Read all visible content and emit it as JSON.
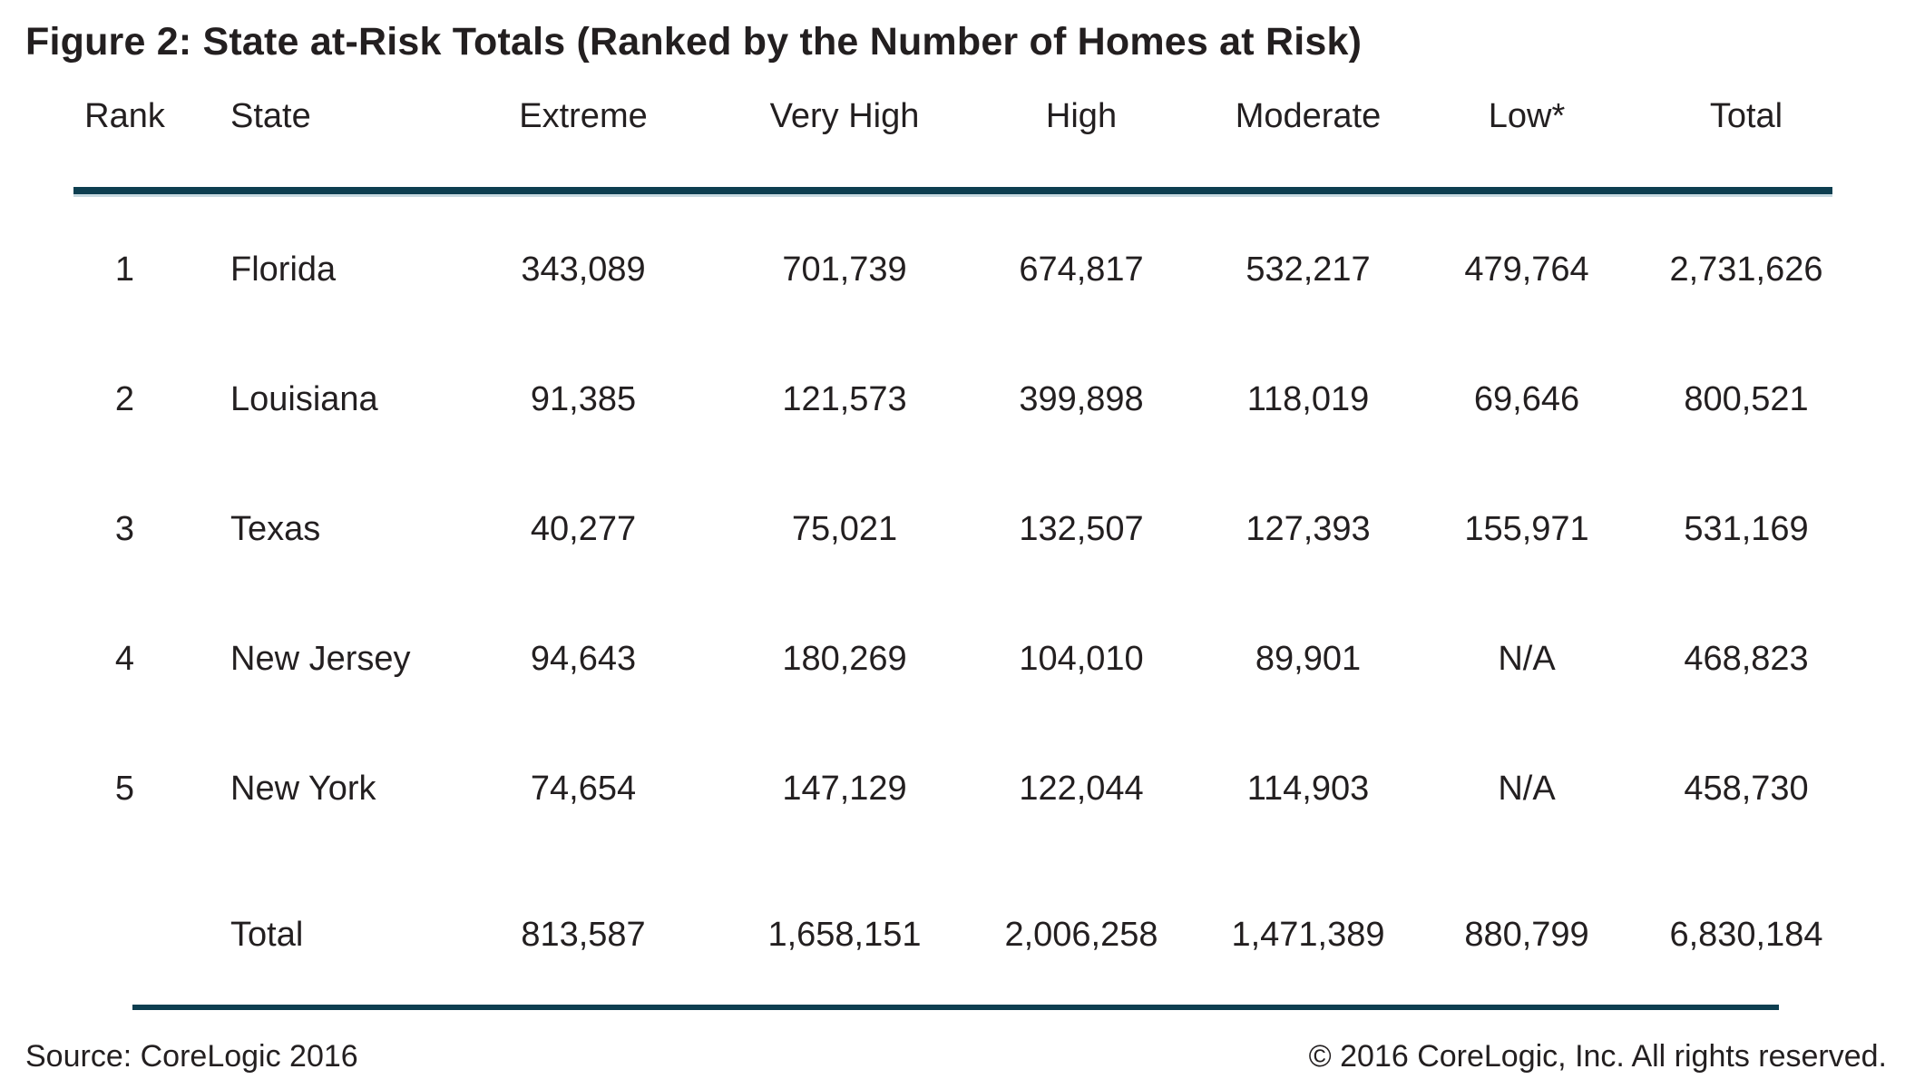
{
  "title": "Figure 2: State at-Risk Totals (Ranked by the Number of Homes at Risk)",
  "table": {
    "headers": [
      "Rank",
      "State",
      "Extreme",
      "Very High",
      "High",
      "Moderate",
      "Low*",
      "Total"
    ],
    "rows": [
      [
        "1",
        "Florida",
        "343,089",
        "701,739",
        "674,817",
        "532,217",
        "479,764",
        "2,731,626"
      ],
      [
        "2",
        "Louisiana",
        "91,385",
        "121,573",
        "399,898",
        "118,019",
        "69,646",
        "800,521"
      ],
      [
        "3",
        "Texas",
        "40,277",
        "75,021",
        "132,507",
        "127,393",
        "155,971",
        "531,169"
      ],
      [
        "4",
        "New Jersey",
        "94,643",
        "180,269",
        "104,010",
        "89,901",
        "N/A",
        "468,823"
      ],
      [
        "5",
        "New York",
        "74,654",
        "147,129",
        "122,044",
        "114,903",
        "N/A",
        "458,730"
      ]
    ],
    "total_row": [
      "",
      "Total",
      "813,587",
      "1,658,151",
      "2,006,258",
      "1,471,389",
      "880,799",
      "6,830,184"
    ]
  },
  "footer": {
    "source": "Source: CoreLogic 2016",
    "copyright": "© 2016 CoreLogic, Inc. All rights reserved."
  },
  "colors": {
    "accent_line": "#0d3e50",
    "text": "#231f20",
    "background": "#ffffff"
  },
  "chart_data": {
    "type": "table",
    "title": "Figure 2: State at-Risk Totals (Ranked by the Number of Homes at Risk)",
    "columns": [
      "Rank",
      "State",
      "Extreme",
      "Very High",
      "High",
      "Moderate",
      "Low*",
      "Total"
    ],
    "rows": [
      {
        "rank": 1,
        "state": "Florida",
        "extreme": 343089,
        "very_high": 701739,
        "high": 674817,
        "moderate": 532217,
        "low": 479764,
        "total": 2731626
      },
      {
        "rank": 2,
        "state": "Louisiana",
        "extreme": 91385,
        "very_high": 121573,
        "high": 399898,
        "moderate": 118019,
        "low": 69646,
        "total": 800521
      },
      {
        "rank": 3,
        "state": "Texas",
        "extreme": 40277,
        "very_high": 75021,
        "high": 132507,
        "moderate": 127393,
        "low": 155971,
        "total": 531169
      },
      {
        "rank": 4,
        "state": "New Jersey",
        "extreme": 94643,
        "very_high": 180269,
        "high": 104010,
        "moderate": 89901,
        "low": null,
        "total": 468823
      },
      {
        "rank": 5,
        "state": "New York",
        "extreme": 74654,
        "very_high": 147129,
        "high": 122044,
        "moderate": 114903,
        "low": null,
        "total": 458730
      }
    ],
    "totals": {
      "extreme": 813587,
      "very_high": 1658151,
      "high": 2006258,
      "moderate": 1471389,
      "low": 880799,
      "total": 6830184
    },
    "source": "Source: CoreLogic 2016"
  }
}
